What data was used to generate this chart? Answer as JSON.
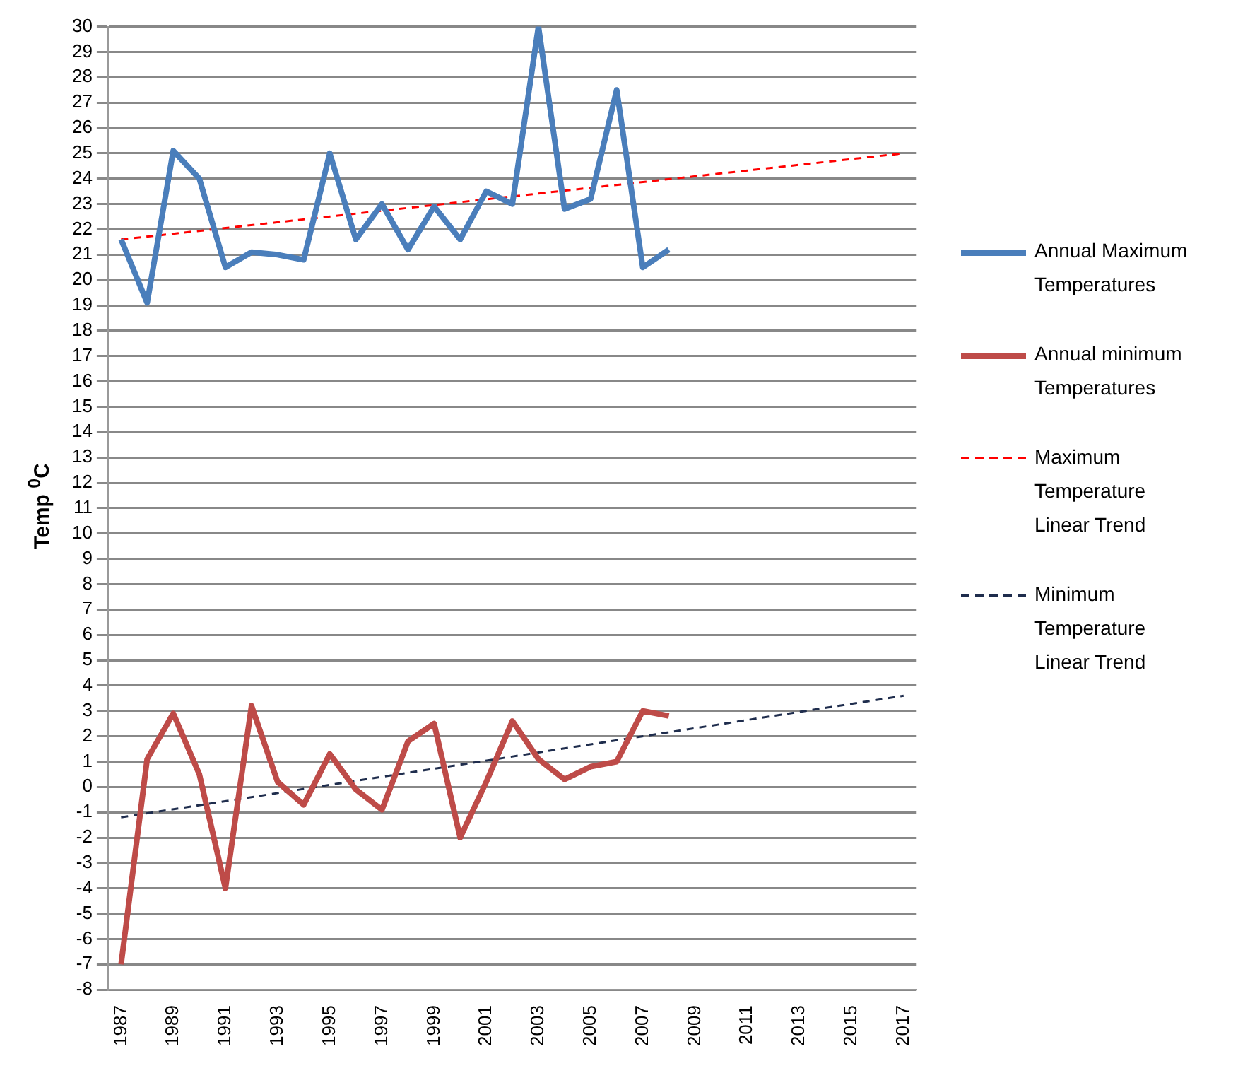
{
  "chart_data": {
    "type": "line",
    "ylabel": "Temp $^{0}$C",
    "categories": [
      "1987",
      null,
      "1989",
      null,
      "1991",
      null,
      "1993",
      null,
      "1995",
      null,
      "1997",
      null,
      "1999",
      null,
      "2001",
      null,
      "2003",
      null,
      "2005",
      null,
      "2007",
      null,
      "2009",
      null,
      "2011",
      null,
      "2013",
      null,
      "2015",
      null,
      "2017"
    ],
    "series": [
      {
        "name": "Annual Maximum Temperatures",
        "color": "#4a7ebb",
        "line_style": "solid",
        "values": [
          21.6,
          19.1,
          25.1,
          24.0,
          20.5,
          21.1,
          21.0,
          20.8,
          25.0,
          21.6,
          23.0,
          21.2,
          22.9,
          21.6,
          23.5,
          23.0,
          30.0,
          22.8,
          23.2,
          27.5,
          20.5,
          21.2,
          null,
          null,
          null,
          null,
          null,
          null,
          null,
          null,
          null
        ]
      },
      {
        "name": "Annual minimum Temperatures",
        "color": "#be4b48",
        "line_style": "solid",
        "values": [
          -7.0,
          1.1,
          2.9,
          0.5,
          -4.0,
          3.2,
          0.2,
          -0.7,
          1.3,
          -0.1,
          -0.9,
          1.8,
          2.5,
          -2.0,
          0.2,
          2.6,
          1.1,
          0.3,
          0.8,
          1.0,
          3.0,
          2.8,
          null,
          null,
          null,
          null,
          null,
          null,
          null,
          null,
          null
        ]
      },
      {
        "name": "Maximum Temperature Linear Trend",
        "color": "#ff0000",
        "line_style": "dashed",
        "values": [
          21.6,
          null,
          null,
          null,
          null,
          null,
          null,
          null,
          null,
          null,
          null,
          null,
          null,
          null,
          null,
          null,
          null,
          null,
          null,
          null,
          null,
          null,
          null,
          null,
          null,
          null,
          null,
          null,
          null,
          null,
          25.0
        ]
      },
      {
        "name": "Minimum Temperature Linear Trend",
        "color": "#1f2d4d",
        "line_style": "dashed",
        "values": [
          -1.2,
          null,
          null,
          null,
          null,
          null,
          null,
          null,
          null,
          null,
          null,
          null,
          null,
          null,
          null,
          null,
          null,
          null,
          null,
          null,
          null,
          null,
          null,
          null,
          null,
          null,
          null,
          null,
          null,
          null,
          3.6
        ]
      }
    ],
    "ylim": [
      -8,
      30
    ],
    "yticks": [
      -8,
      -7,
      -6,
      -5,
      -4,
      -3,
      -2,
      -1,
      0,
      1,
      2,
      3,
      4,
      5,
      6,
      7,
      8,
      9,
      10,
      11,
      12,
      13,
      14,
      15,
      16,
      17,
      18,
      19,
      20,
      21,
      22,
      23,
      24,
      25,
      26,
      27,
      28,
      29,
      30
    ],
    "grid": "y",
    "legend": "right",
    "marker": "none"
  }
}
